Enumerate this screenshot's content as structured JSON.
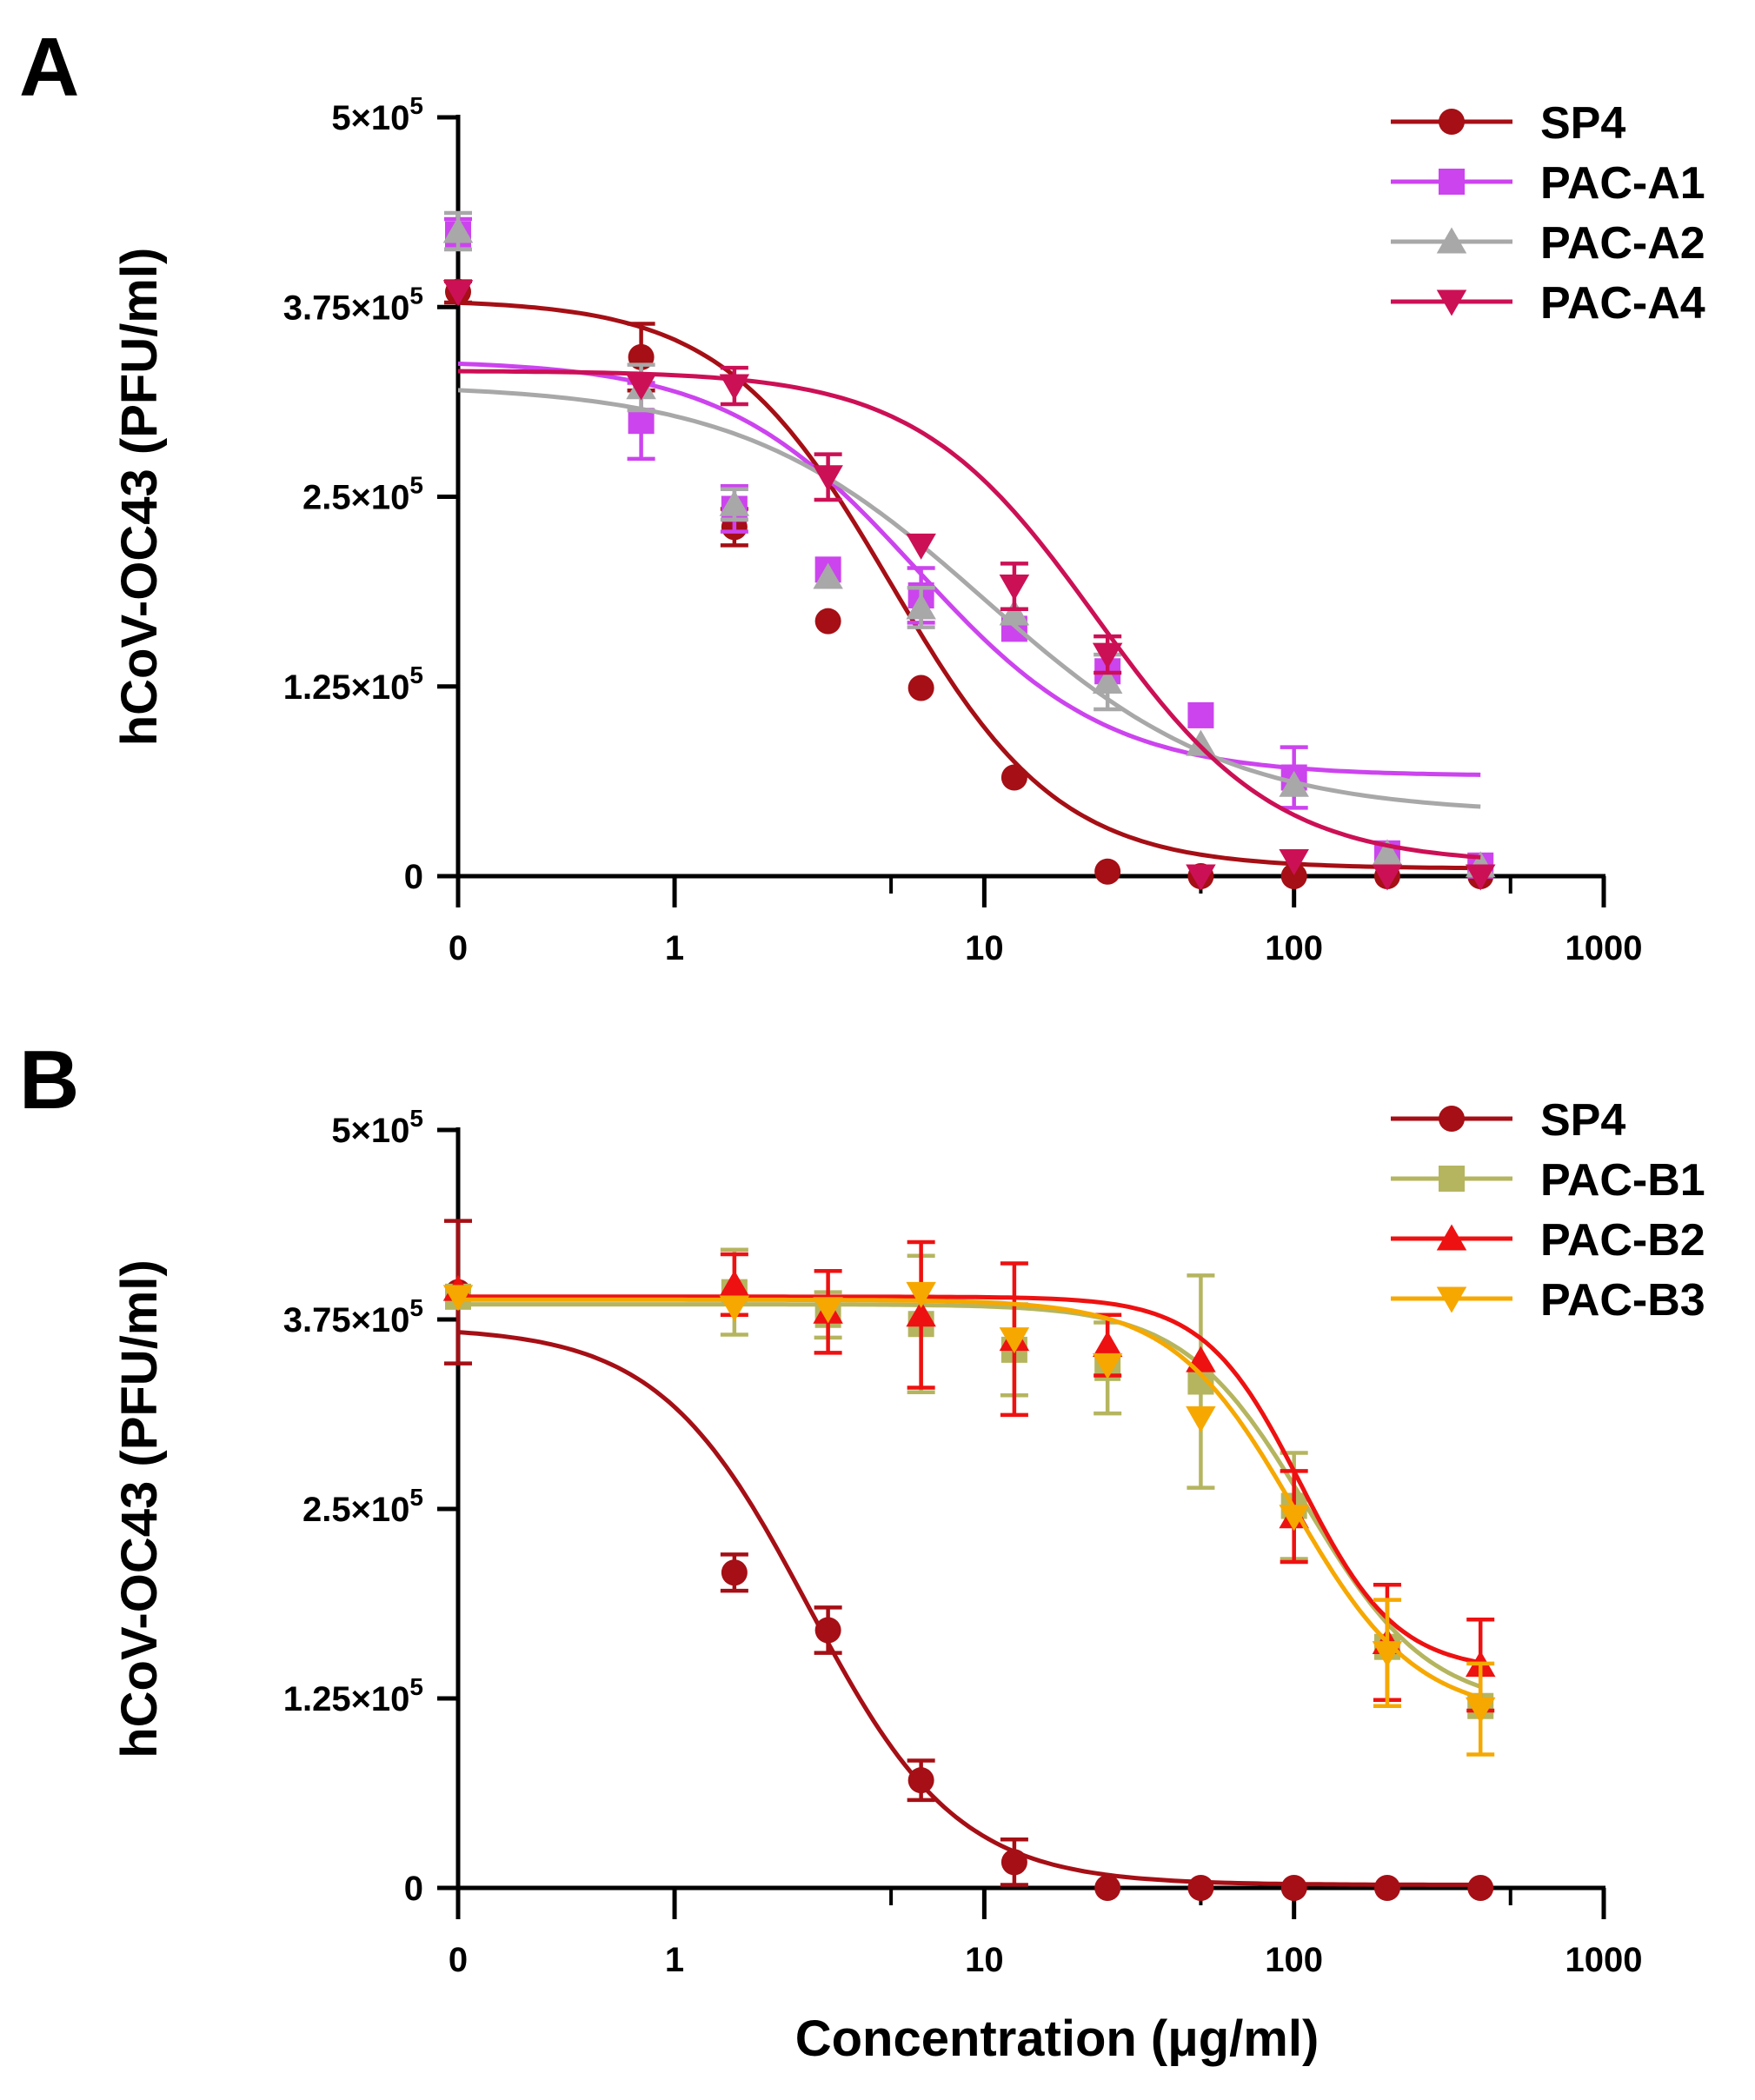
{
  "chart_data": [
    {
      "type": "scatter",
      "panel_label": "A",
      "ylabel": "hCoV-OC43 (PFU/ml)",
      "xlabel": "",
      "xscale": "log",
      "xlim": [
        0.2,
        1000
      ],
      "ylim": [
        0,
        500000
      ],
      "x_ticks": [
        {
          "value": 0.2,
          "label": "0"
        },
        {
          "value": 1,
          "label": "1"
        },
        {
          "value": 10,
          "label": "10"
        },
        {
          "value": 100,
          "label": "100"
        },
        {
          "value": 1000,
          "label": "1000"
        }
      ],
      "y_ticks": [
        {
          "value": 0,
          "label": "0",
          "base": "0",
          "exp": ""
        },
        {
          "value": 125000,
          "label": "1.25×10^5",
          "base": "1.25×10",
          "exp": "5"
        },
        {
          "value": 250000,
          "label": "2.5×10^5",
          "base": "2.5×10",
          "exp": "5"
        },
        {
          "value": 375000,
          "label": "3.75×10^5",
          "base": "3.75×10",
          "exp": "5"
        },
        {
          "value": 500000,
          "label": "5×10^5",
          "base": "5×10",
          "exp": "5"
        }
      ],
      "legend_position": "top-right",
      "series": [
        {
          "name": "SP4",
          "color": "#a50f15",
          "marker": "circle",
          "x": [
            0.2,
            0.78,
            1.56,
            3.13,
            6.25,
            12.5,
            25,
            50,
            100,
            200,
            400
          ],
          "y": [
            385000,
            342000,
            230000,
            168000,
            124000,
            65000,
            3000,
            0,
            0,
            0,
            0
          ],
          "err": [
            7000,
            22000,
            12000,
            0,
            0,
            0,
            0,
            0,
            0,
            0,
            0
          ],
          "fit": {
            "top": 380000,
            "bottom": 5000,
            "ec50": 5.0,
            "hill": 1.6
          }
        },
        {
          "name": "PAC-A1",
          "color": "#cc44ee",
          "marker": "square",
          "x": [
            0.2,
            0.78,
            1.56,
            3.13,
            6.25,
            12.5,
            25,
            50,
            100,
            200,
            400
          ],
          "y": [
            423000,
            300000,
            242000,
            202000,
            185000,
            163000,
            135000,
            106000,
            65000,
            15000,
            7000
          ],
          "err": [
            10000,
            25000,
            15000,
            0,
            18000,
            0,
            0,
            0,
            20000,
            0,
            0
          ],
          "fit": {
            "top": 340000,
            "bottom": 66000,
            "ec50": 6.0,
            "hill": 1.4
          }
        },
        {
          "name": "PAC-A2",
          "color": "#a8a8a8",
          "marker": "triangle-up",
          "x": [
            0.2,
            0.78,
            1.56,
            3.13,
            6.25,
            12.5,
            25,
            50,
            100,
            200,
            400
          ],
          "y": [
            425000,
            322000,
            245000,
            197000,
            177000,
            173000,
            128000,
            87000,
            60000,
            15000,
            7000
          ],
          "err": [
            12000,
            15000,
            10000,
            0,
            13000,
            0,
            18000,
            0,
            0,
            0,
            0
          ],
          "fit": {
            "top": 324000,
            "bottom": 41000,
            "ec50": 10.0,
            "hill": 1.1
          }
        },
        {
          "name": "PAC-A4",
          "color": "#cc1055",
          "marker": "triangle-down",
          "x": [
            0.2,
            0.78,
            1.56,
            3.13,
            6.25,
            12.5,
            25,
            50,
            100,
            200,
            400
          ],
          "y": [
            385000,
            323000,
            323000,
            263000,
            218000,
            191000,
            146000,
            0,
            10000,
            0,
            0
          ],
          "err": [
            0,
            0,
            12000,
            15000,
            0,
            15000,
            12000,
            0,
            0,
            0,
            0
          ],
          "fit": {
            "top": 333000,
            "bottom": 8000,
            "ec50": 23.0,
            "hill": 1.5
          }
        }
      ]
    },
    {
      "type": "scatter",
      "panel_label": "B",
      "ylabel": "hCoV-OC43 (PFU/ml)",
      "xlabel": "Concentration (μg/ml)",
      "xscale": "log",
      "xlim": [
        0.2,
        1000
      ],
      "ylim": [
        0,
        500000
      ],
      "x_ticks": [
        {
          "value": 0.2,
          "label": "0"
        },
        {
          "value": 1,
          "label": "1"
        },
        {
          "value": 10,
          "label": "10"
        },
        {
          "value": 100,
          "label": "100"
        },
        {
          "value": 1000,
          "label": "1000"
        }
      ],
      "y_ticks": [
        {
          "value": 0,
          "label": "0",
          "base": "0",
          "exp": ""
        },
        {
          "value": 125000,
          "label": "1.25×10^5",
          "base": "1.25×10",
          "exp": "5"
        },
        {
          "value": 250000,
          "label": "2.5×10^5",
          "base": "2.5×10",
          "exp": "5"
        },
        {
          "value": 375000,
          "label": "3.75×10^5",
          "base": "3.75×10",
          "exp": "5"
        },
        {
          "value": 500000,
          "label": "5×10^5",
          "base": "5×10",
          "exp": "5"
        }
      ],
      "legend_position": "top-right",
      "series": [
        {
          "name": "SP4",
          "color": "#a50f15",
          "marker": "circle",
          "x": [
            0.2,
            1.56,
            3.13,
            6.25,
            12.5,
            25,
            50,
            100,
            200,
            400
          ],
          "y": [
            393000,
            208000,
            170000,
            71000,
            17000,
            0,
            0,
            0,
            0,
            0
          ],
          "err": [
            47000,
            12000,
            15000,
            13000,
            15000,
            0,
            0,
            0,
            0,
            0
          ],
          "fit": {
            "top": 370000,
            "bottom": 2000,
            "ec50": 2.7,
            "hill": 1.8
          }
        },
        {
          "name": "PAC-B1",
          "color": "#b5b560",
          "marker": "square",
          "x": [
            0.2,
            1.56,
            3.13,
            6.25,
            12.5,
            25,
            50,
            100,
            200,
            400
          ],
          "y": [
            390000,
            393000,
            378000,
            372000,
            355000,
            343000,
            334000,
            252000,
            159000,
            120000
          ],
          "err": [
            0,
            28000,
            15000,
            45000,
            30000,
            30000,
            70000,
            35000,
            0,
            0
          ],
          "fit": {
            "top": 385000,
            "bottom": 118000,
            "ec50": 110.0,
            "hill": 2.2
          }
        },
        {
          "name": "PAC-B2",
          "color": "#ee1111",
          "marker": "triangle-up",
          "x": [
            0.2,
            1.56,
            3.13,
            6.25,
            12.5,
            25,
            50,
            100,
            200,
            400
          ],
          "y": [
            395000,
            398000,
            380000,
            378000,
            362000,
            358000,
            348000,
            245000,
            162000,
            147000
          ],
          "err": [
            0,
            20000,
            27000,
            48000,
            50000,
            20000,
            0,
            30000,
            38000,
            30000
          ],
          "fit": {
            "top": 390000,
            "bottom": 143000,
            "ec50": 105.0,
            "hill": 2.8
          }
        },
        {
          "name": "PAC-B3",
          "color": "#f6a800",
          "marker": "triangle-down",
          "x": [
            0.2,
            1.56,
            3.13,
            6.25,
            12.5,
            25,
            50,
            100,
            200,
            400
          ],
          "y": [
            390000,
            383000,
            382000,
            392000,
            362000,
            345000,
            310000,
            245000,
            155000,
            118000
          ],
          "err": [
            0,
            0,
            0,
            0,
            0,
            0,
            0,
            0,
            35000,
            30000
          ],
          "fit": {
            "top": 388000,
            "bottom": 113000,
            "ec50": 100.0,
            "hill": 2.2
          }
        }
      ]
    }
  ]
}
